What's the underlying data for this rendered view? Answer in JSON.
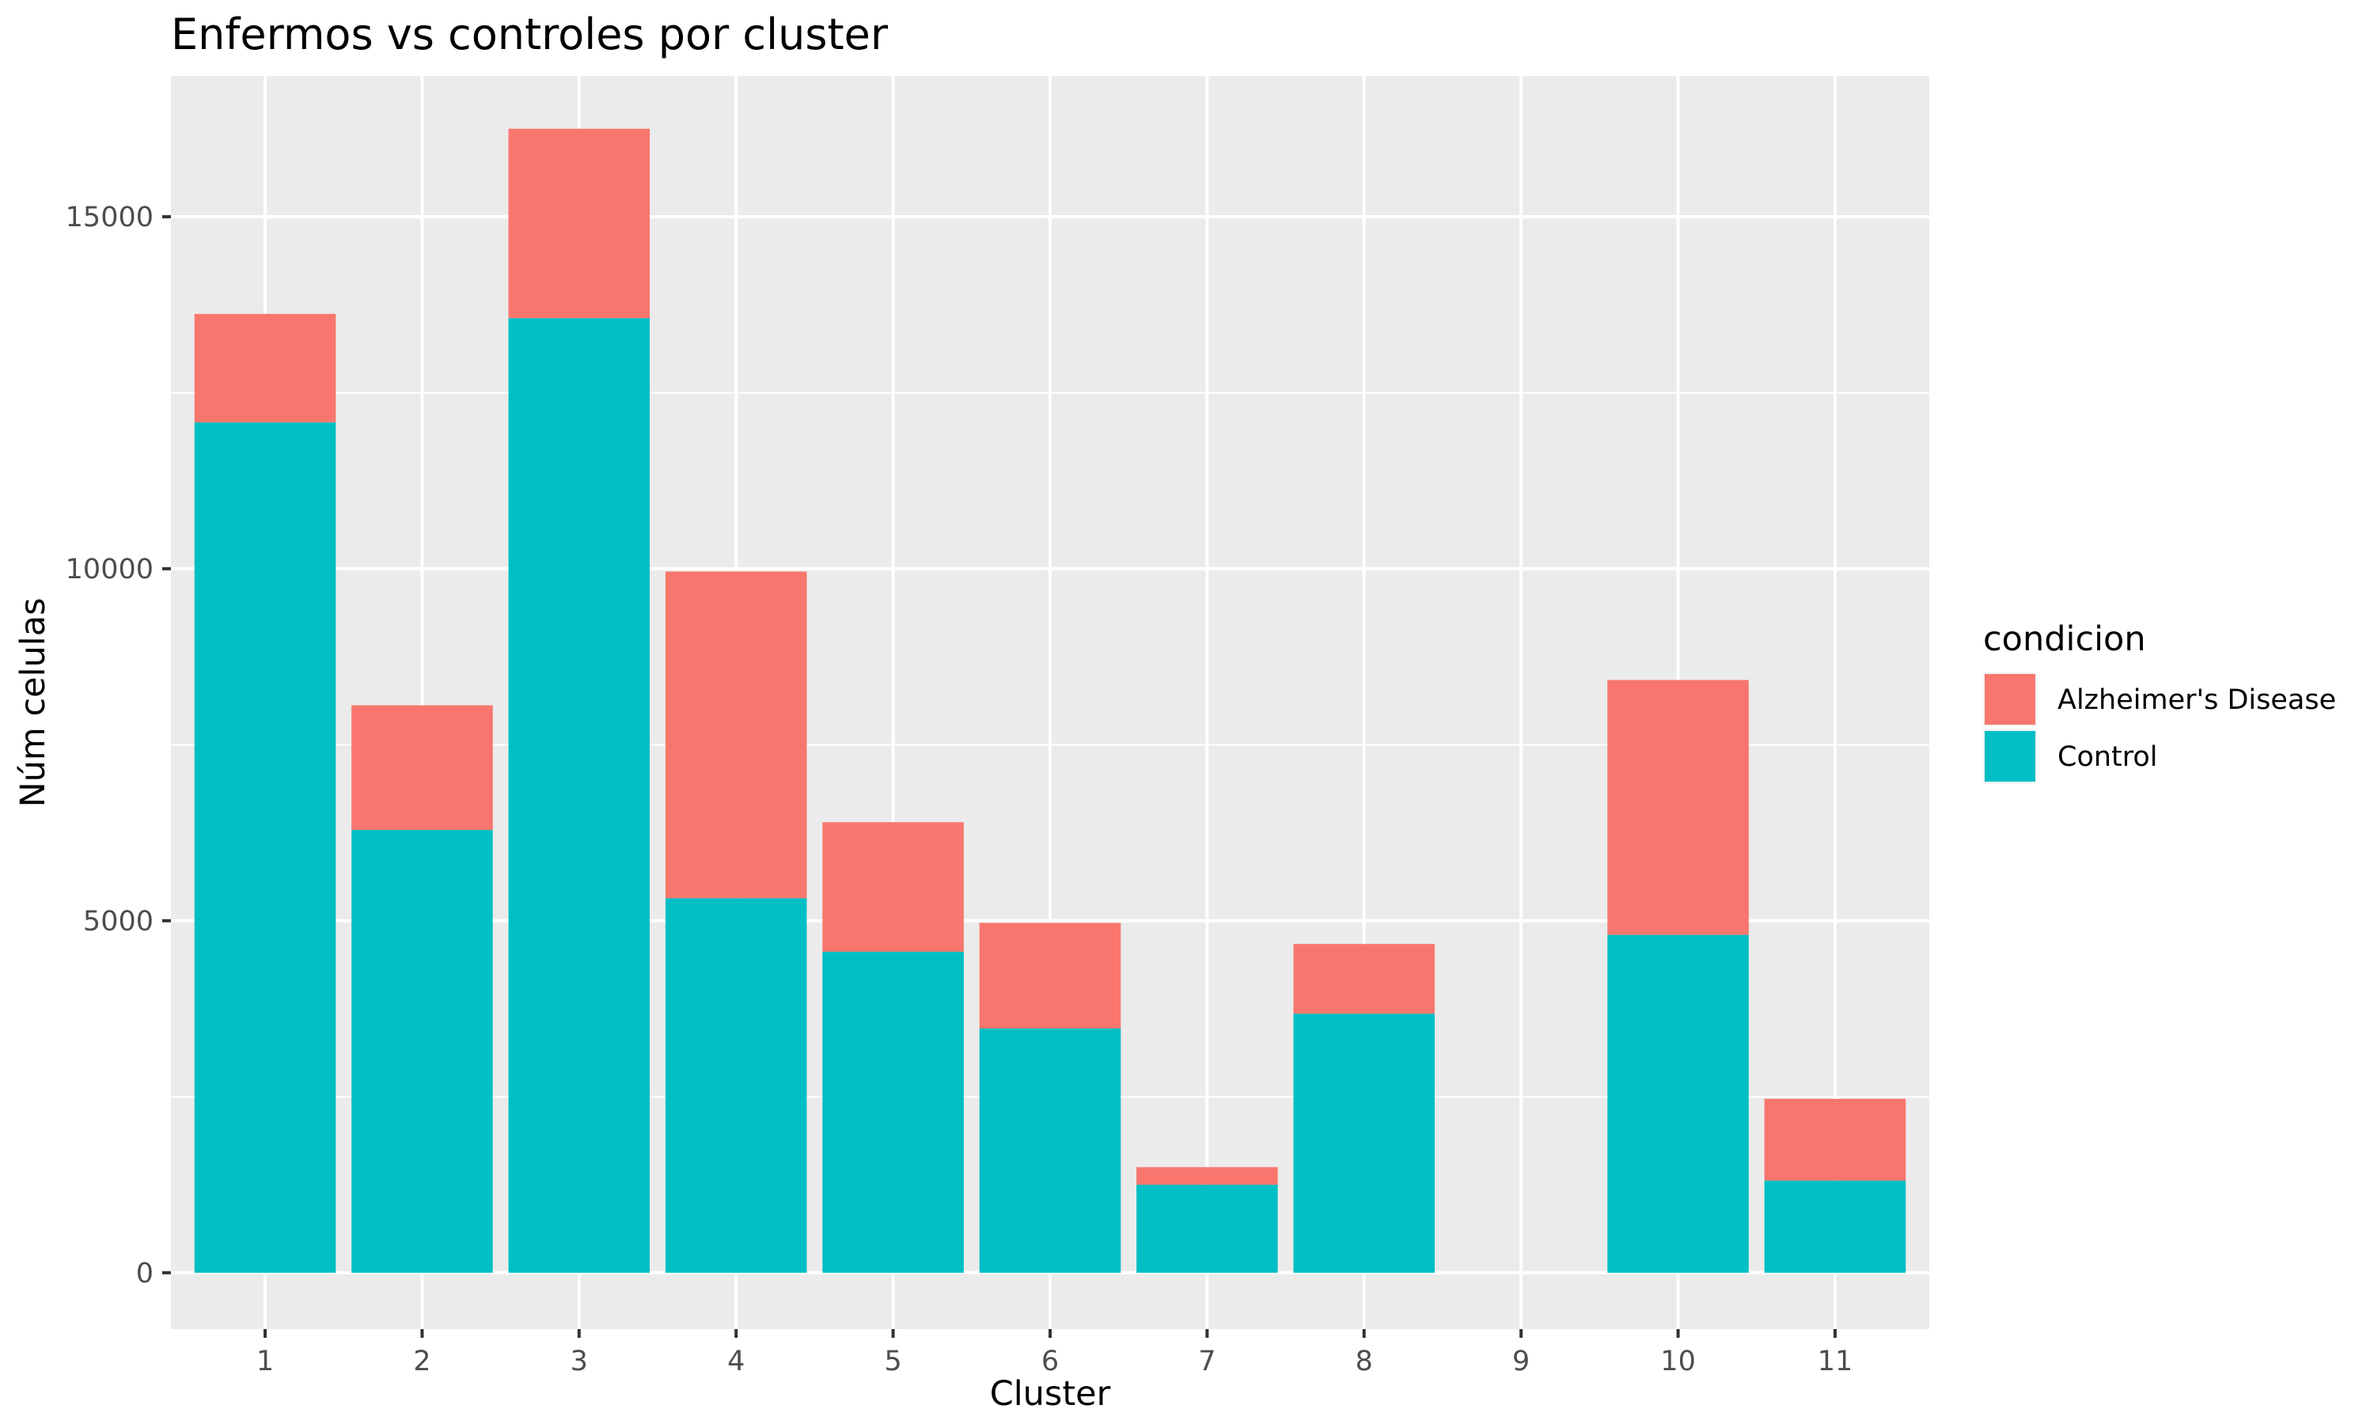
{
  "chart_data": {
    "type": "bar",
    "stacked": true,
    "title": "Enfermos vs controles por cluster",
    "xlabel": "Cluster",
    "ylabel": "Núm celulas",
    "categories": [
      "1",
      "2",
      "3",
      "4",
      "5",
      "6",
      "7",
      "8",
      "9",
      "10",
      "11"
    ],
    "series": [
      {
        "name": "Control",
        "color": "#00BFC4",
        "values": [
          12080,
          6290,
          13560,
          5320,
          4560,
          3470,
          1250,
          3680,
          0,
          4800,
          1310
        ]
      },
      {
        "name": "Alzheimer's Disease",
        "color": "#F8766D",
        "values": [
          1540,
          1770,
          2690,
          4640,
          1840,
          1500,
          250,
          990,
          0,
          3620,
          1160
        ]
      }
    ],
    "ylim": [
      -800,
      17000
    ],
    "yticks": [
      0,
      5000,
      10000,
      15000
    ],
    "ytick_labels": [
      "0",
      "5000",
      "10000",
      "15000"
    ],
    "grid": true,
    "panel_background": "#EBEBEB",
    "legend": {
      "title": "condicion",
      "position": "right",
      "entries": [
        {
          "label": "Alzheimer's Disease",
          "color": "#F8766D"
        },
        {
          "label": "Control",
          "color": "#00BFC4"
        }
      ]
    }
  }
}
